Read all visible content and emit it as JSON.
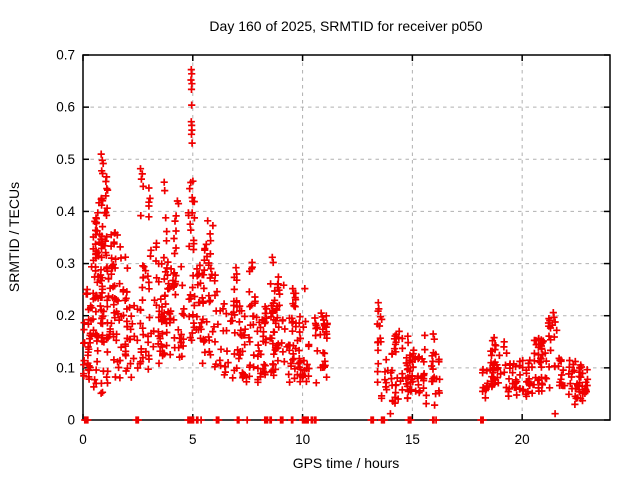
{
  "chart_data": {
    "type": "scatter",
    "title": "Day 160 of 2025, SRMTID for receiver p050",
    "xlabel": "GPS time / hours",
    "ylabel": "SRMTID / TECUs",
    "xlim": [
      0,
      24
    ],
    "ylim": [
      0,
      0.7
    ],
    "grid": true,
    "legend": "none",
    "marker": "plus",
    "marker_color": "#f00000",
    "grid_color": "#b0b0b0",
    "axis_color": "#000000",
    "background_color": "#ffffff",
    "xticks": [
      {
        "v": 0,
        "label": "0"
      },
      {
        "v": 5,
        "label": "5"
      },
      {
        "v": 10,
        "label": "10"
      },
      {
        "v": 15,
        "label": "15"
      },
      {
        "v": 20,
        "label": "20"
      }
    ],
    "yticks": [
      {
        "v": 0.0,
        "label": "0"
      },
      {
        "v": 0.1,
        "label": "0.1"
      },
      {
        "v": 0.2,
        "label": "0.2"
      },
      {
        "v": 0.3,
        "label": "0.3"
      },
      {
        "v": 0.4,
        "label": "0.4"
      },
      {
        "v": 0.5,
        "label": "0.5"
      },
      {
        "v": 0.6,
        "label": "0.6"
      },
      {
        "v": 0.7,
        "label": "0.7"
      }
    ],
    "points": [
      [
        4.93,
        0.672
      ],
      [
        4.95,
        0.664
      ],
      [
        4.92,
        0.652
      ],
      [
        4.96,
        0.645
      ],
      [
        4.94,
        0.634
      ],
      [
        4.95,
        0.604
      ],
      [
        4.93,
        0.572
      ],
      [
        4.95,
        0.565
      ],
      [
        4.96,
        0.556
      ],
      [
        4.94,
        0.548
      ],
      [
        4.97,
        0.531
      ],
      [
        0.83,
        0.51
      ],
      [
        0.88,
        0.498
      ],
      [
        0.92,
        0.492
      ],
      [
        0.85,
        0.478
      ],
      [
        2.62,
        0.482
      ],
      [
        2.7,
        0.472
      ],
      [
        2.66,
        0.462
      ],
      [
        2.74,
        0.448
      ],
      [
        2.63,
        0.392
      ],
      [
        3.0,
        0.445
      ],
      [
        3.05,
        0.425
      ],
      [
        3.7,
        0.456
      ],
      [
        3.72,
        0.44
      ],
      [
        4.3,
        0.42
      ],
      [
        4.35,
        0.415
      ],
      [
        5.68,
        0.382
      ],
      [
        6.97,
        0.292
      ],
      [
        7.0,
        0.28
      ],
      [
        7.7,
        0.302
      ],
      [
        7.68,
        0.29
      ],
      [
        8.62,
        0.312
      ],
      [
        8.66,
        0.302
      ],
      [
        9.55,
        0.252
      ],
      [
        9.6,
        0.243
      ],
      [
        10.1,
        0.252
      ],
      [
        10.85,
        0.205
      ],
      [
        10.9,
        0.198
      ],
      [
        13.45,
        0.225
      ],
      [
        13.47,
        0.213
      ],
      [
        14.4,
        0.17
      ],
      [
        14.38,
        0.158
      ],
      [
        15.95,
        0.165
      ],
      [
        16.0,
        0.155
      ],
      [
        18.72,
        0.158
      ],
      [
        18.65,
        0.152
      ],
      [
        21.42,
        0.206
      ],
      [
        21.45,
        0.197
      ],
      [
        21.5,
        0.188
      ],
      [
        21.38,
        0.182
      ],
      [
        22.4,
        0.03
      ],
      [
        14.0,
        0.012
      ],
      [
        21.5,
        0.012
      ]
    ],
    "zero_x": [
      0.08,
      0.12,
      0.18,
      0.22,
      2.42,
      2.47,
      2.52,
      4.78,
      4.83,
      4.88,
      4.93,
      4.98,
      5.03,
      5.18,
      5.23,
      5.38,
      6.08,
      6.13,
      6.18,
      7.03,
      7.1,
      7.48,
      8.28,
      8.33,
      8.4,
      8.52,
      8.57,
      9.0,
      9.05,
      9.1,
      9.5,
      9.55,
      10.0,
      10.05,
      10.12,
      10.18,
      10.25,
      10.4,
      10.45,
      10.55,
      10.6,
      13.12,
      13.17,
      13.22,
      13.6,
      13.65,
      13.72,
      14.82,
      14.87,
      14.93,
      15.93,
      15.98,
      16.08,
      18.12,
      18.17,
      18.22
    ],
    "clusters": [
      {
        "x": [
          0.02,
          0.35
        ],
        "y": [
          0.06,
          0.22
        ],
        "n": 28
      },
      {
        "x": [
          0.05,
          0.3
        ],
        "y": [
          0.22,
          0.265
        ],
        "n": 4
      },
      {
        "x": [
          0.4,
          1.2
        ],
        "y": [
          0.05,
          0.16
        ],
        "n": 18
      },
      {
        "x": [
          0.38,
          1.25
        ],
        "y": [
          0.15,
          0.3
        ],
        "n": 55
      },
      {
        "x": [
          0.45,
          1.2
        ],
        "y": [
          0.3,
          0.4
        ],
        "n": 38
      },
      {
        "x": [
          0.7,
          1.15
        ],
        "y": [
          0.4,
          0.475
        ],
        "n": 12
      },
      {
        "x": [
          1.2,
          2.1
        ],
        "y": [
          0.08,
          0.3
        ],
        "n": 55
      },
      {
        "x": [
          1.25,
          2.0
        ],
        "y": [
          0.3,
          0.36
        ],
        "n": 12
      },
      {
        "x": [
          2.1,
          2.65
        ],
        "y": [
          0.08,
          0.22
        ],
        "n": 20
      },
      {
        "x": [
          2.7,
          3.6
        ],
        "y": [
          0.09,
          0.3
        ],
        "n": 42
      },
      {
        "x": [
          2.9,
          3.4
        ],
        "y": [
          0.3,
          0.42
        ],
        "n": 8
      },
      {
        "x": [
          3.6,
          4.65
        ],
        "y": [
          0.12,
          0.285
        ],
        "n": 60
      },
      {
        "x": [
          3.65,
          4.55
        ],
        "y": [
          0.285,
          0.41
        ],
        "n": 14
      },
      {
        "x": [
          4.82,
          5.1
        ],
        "y": [
          0.15,
          0.47
        ],
        "n": 30
      },
      {
        "x": [
          5.15,
          6.2
        ],
        "y": [
          0.1,
          0.3
        ],
        "n": 52
      },
      {
        "x": [
          5.5,
          5.95
        ],
        "y": [
          0.3,
          0.375
        ],
        "n": 10
      },
      {
        "x": [
          6.2,
          7.3
        ],
        "y": [
          0.08,
          0.225
        ],
        "n": 45
      },
      {
        "x": [
          6.85,
          7.15
        ],
        "y": [
          0.225,
          0.285
        ],
        "n": 6
      },
      {
        "x": [
          7.3,
          8.3
        ],
        "y": [
          0.07,
          0.2
        ],
        "n": 42
      },
      {
        "x": [
          7.55,
          7.85
        ],
        "y": [
          0.2,
          0.295
        ],
        "n": 8
      },
      {
        "x": [
          8.3,
          9.35
        ],
        "y": [
          0.08,
          0.22
        ],
        "n": 48
      },
      {
        "x": [
          8.45,
          9.2
        ],
        "y": [
          0.22,
          0.275
        ],
        "n": 12
      },
      {
        "x": [
          9.35,
          10.7
        ],
        "y": [
          0.07,
          0.2
        ],
        "n": 58
      },
      {
        "x": [
          9.45,
          9.7
        ],
        "y": [
          0.2,
          0.245
        ],
        "n": 6
      },
      {
        "x": [
          10.75,
          11.15
        ],
        "y": [
          0.08,
          0.2
        ],
        "n": 22
      },
      {
        "x": [
          13.35,
          13.62
        ],
        "y": [
          0.13,
          0.21
        ],
        "n": 10
      },
      {
        "x": [
          13.35,
          16.25
        ],
        "y": [
          0.05,
          0.13
        ],
        "n": 90
      },
      {
        "x": [
          13.4,
          16.2
        ],
        "y": [
          0.13,
          0.165
        ],
        "n": 14
      },
      {
        "x": [
          13.5,
          16.1
        ],
        "y": [
          0.028,
          0.05
        ],
        "n": 12
      },
      {
        "x": [
          18.18,
          18.38
        ],
        "y": [
          0.04,
          0.1
        ],
        "n": 10
      },
      {
        "x": [
          18.4,
          19.3
        ],
        "y": [
          0.055,
          0.15
        ],
        "n": 42
      },
      {
        "x": [
          19.3,
          20.5
        ],
        "y": [
          0.045,
          0.115
        ],
        "n": 46
      },
      {
        "x": [
          20.5,
          21.7
        ],
        "y": [
          0.055,
          0.165
        ],
        "n": 48
      },
      {
        "x": [
          21.2,
          21.65
        ],
        "y": [
          0.165,
          0.195
        ],
        "n": 6
      },
      {
        "x": [
          21.7,
          22.7
        ],
        "y": [
          0.04,
          0.125
        ],
        "n": 40
      },
      {
        "x": [
          22.7,
          23.1
        ],
        "y": [
          0.035,
          0.1
        ],
        "n": 14
      }
    ],
    "seed": 160
  }
}
